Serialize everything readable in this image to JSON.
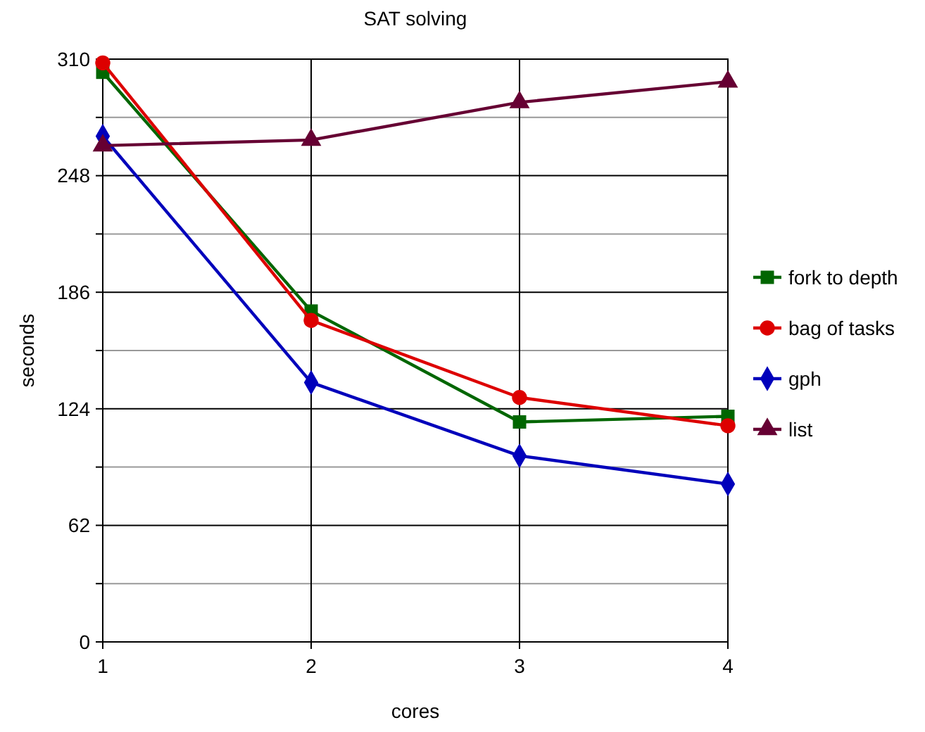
{
  "chart_data": {
    "type": "line",
    "title": "SAT solving",
    "xlabel": "cores",
    "ylabel": "seconds",
    "x": [
      1,
      2,
      3,
      4
    ],
    "xlim": [
      1,
      4
    ],
    "xticks": [
      1,
      2,
      3,
      4
    ],
    "ylim": [
      0,
      310
    ],
    "yticks": [
      0,
      {
        "value": 31,
        "label": null
      },
      62,
      {
        "value": 93,
        "label": null
      },
      124,
      {
        "value": 155,
        "label": null
      },
      186,
      {
        "value": 217,
        "label": null
      },
      248,
      {
        "value": 279,
        "label": null
      },
      310
    ],
    "grid": true,
    "legend": "right",
    "series": [
      {
        "name": "fork to depth",
        "color": "#006600",
        "marker": "square",
        "values": [
          303,
          176,
          117,
          120
        ]
      },
      {
        "name": "bag of tasks",
        "color": "#dd0000",
        "marker": "circle",
        "values": [
          308,
          171,
          130,
          115
        ]
      },
      {
        "name": "gph",
        "color": "#0000bb",
        "marker": "diamond",
        "values": [
          269,
          138,
          99,
          84
        ]
      },
      {
        "name": "list",
        "color": "#660033",
        "marker": "triangle",
        "values": [
          264,
          267,
          287,
          298
        ]
      }
    ]
  }
}
